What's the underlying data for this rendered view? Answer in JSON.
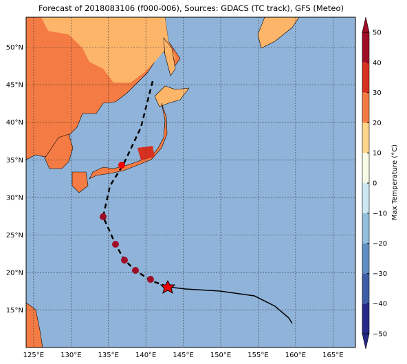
{
  "title": "Forecast of 2018083106 (f000-006), Sources: GDACS (TC track), GFS (Meteo)",
  "map": {
    "lon_lim": [
      124,
      168
    ],
    "lat_lim": [
      10,
      54
    ],
    "lat_labels": [
      {
        "value": 15,
        "label": "15°N"
      },
      {
        "value": 20,
        "label": "20°N"
      },
      {
        "value": 25,
        "label": "25°N"
      },
      {
        "value": 30,
        "label": "30°N"
      },
      {
        "value": 35,
        "label": "35°N"
      },
      {
        "value": 40,
        "label": "40°N"
      },
      {
        "value": 45,
        "label": "45°N"
      },
      {
        "value": 50,
        "label": "50°N"
      }
    ],
    "lon_labels": [
      {
        "value": 125,
        "label": "125°E"
      },
      {
        "value": 130,
        "label": "130°E"
      },
      {
        "value": 135,
        "label": "135°E"
      },
      {
        "value": 140,
        "label": "140°E"
      },
      {
        "value": 145,
        "label": "145°E"
      },
      {
        "value": 150,
        "label": "150°E"
      },
      {
        "value": 155,
        "label": "155°E"
      },
      {
        "value": 160,
        "label": "160°E"
      },
      {
        "value": 165,
        "label": "165°E"
      }
    ]
  },
  "colorbar": {
    "label": "Max Temperature (°C)",
    "lim": [
      -50,
      50
    ],
    "ticks": [
      {
        "value": -50,
        "label": "−50"
      },
      {
        "value": -40,
        "label": "−40"
      },
      {
        "value": -30,
        "label": "−30"
      },
      {
        "value": -20,
        "label": "−20"
      },
      {
        "value": -10,
        "label": "−10"
      },
      0,
      10,
      20,
      30,
      40,
      50
    ],
    "colors": [
      "#262a86",
      "#3d5ea6",
      "#5f8fc2",
      "#92bfdc",
      "#cbe7f1",
      "#f7fbe6",
      "#fed58b",
      "#f47b43",
      "#d7301f",
      "#a00d26"
    ]
  }
}
